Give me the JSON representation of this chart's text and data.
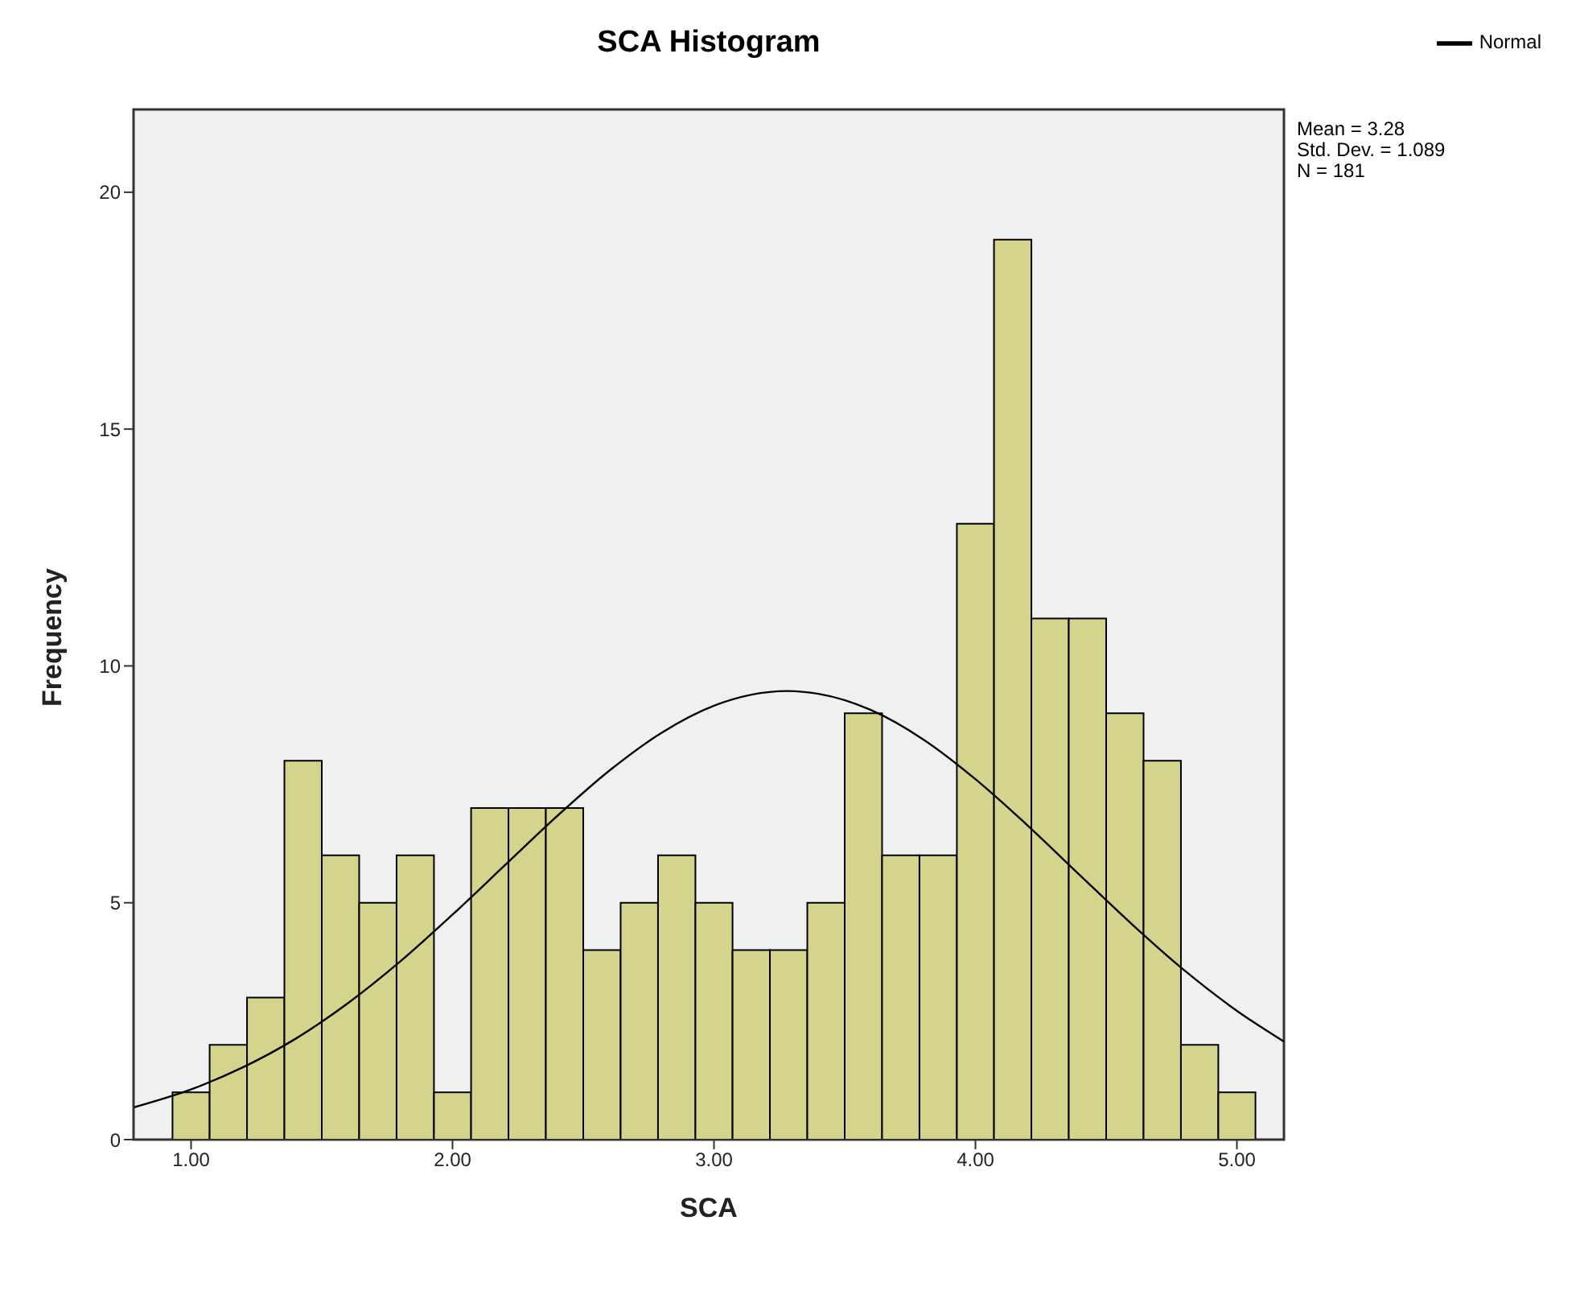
{
  "chart_data": {
    "type": "histogram",
    "title": "SCA Histogram",
    "xlabel": "SCA",
    "ylabel": "Frequency",
    "bins": [
      0.929,
      1.071,
      1.214,
      1.357,
      1.5,
      1.643,
      1.786,
      1.929,
      2.071,
      2.214,
      2.357,
      2.5,
      2.643,
      2.786,
      2.929,
      3.071,
      3.214,
      3.357,
      3.5,
      3.643,
      3.786,
      3.929,
      4.071,
      4.214,
      4.357,
      4.5,
      4.643,
      4.786,
      4.929,
      5.071
    ],
    "series": [
      {
        "color": "#d4d48c",
        "values": [
          1,
          2,
          3,
          8,
          6,
          5,
          6,
          1,
          7,
          7,
          7,
          4,
          5,
          6,
          5,
          4,
          4,
          5,
          9,
          6,
          6,
          13,
          19,
          11,
          11,
          9,
          8,
          2,
          1
        ]
      },
      {
        "type": "line",
        "name": "Normal",
        "color": "#000000",
        "marker": "none",
        "x": [
          0.78,
          1.0,
          1.2,
          1.4,
          1.6,
          1.8,
          2.0,
          2.2,
          2.4,
          2.6,
          2.8,
          3.0,
          3.28,
          3.4,
          3.6,
          3.8,
          4.0,
          4.2,
          4.4,
          4.6,
          4.8,
          5.0,
          5.18
        ],
        "values": [
          0.68,
          1.06,
          1.53,
          2.13,
          2.88,
          3.76,
          4.75,
          5.79,
          6.83,
          7.79,
          8.59,
          9.16,
          9.47,
          9.41,
          9.07,
          8.45,
          7.61,
          6.63,
          5.58,
          4.54,
          3.57,
          2.72,
          2.07
        ]
      }
    ],
    "xlim": [
      0.78,
      5.18
    ],
    "xticks": [
      {
        "value": 1,
        "label": "1.00"
      },
      {
        "value": 2,
        "label": "2.00"
      },
      {
        "value": 3,
        "label": "3.00"
      },
      {
        "value": 4,
        "label": "4.00"
      },
      {
        "value": 5,
        "label": "5.00"
      }
    ],
    "ylim": [
      0,
      21
    ],
    "yticks": [
      0,
      5,
      10,
      15,
      20
    ],
    "legend": "top right",
    "annotations": [
      "Mean = 3.28",
      "Std. Dev. = 1.089",
      "N = 181"
    ]
  }
}
